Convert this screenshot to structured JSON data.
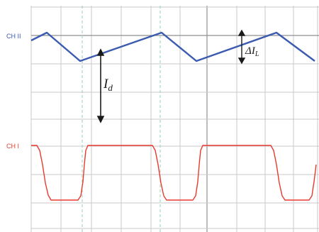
{
  "channels": [
    {
      "label": "CH II",
      "color": "#3b5bb0"
    },
    {
      "label": "CH I",
      "color": "#e8392f"
    }
  ],
  "annotations": {
    "id_main": "I",
    "id_sub": "d",
    "delta_symbol": "Δ",
    "delta_main": "I",
    "delta_sub": "L"
  },
  "colors": {
    "grid_minor": "#c9c9c9",
    "grid_major": "#8f8f8f",
    "cursor": "#8fd3b3",
    "arrow": "#1a1a1a"
  }
}
